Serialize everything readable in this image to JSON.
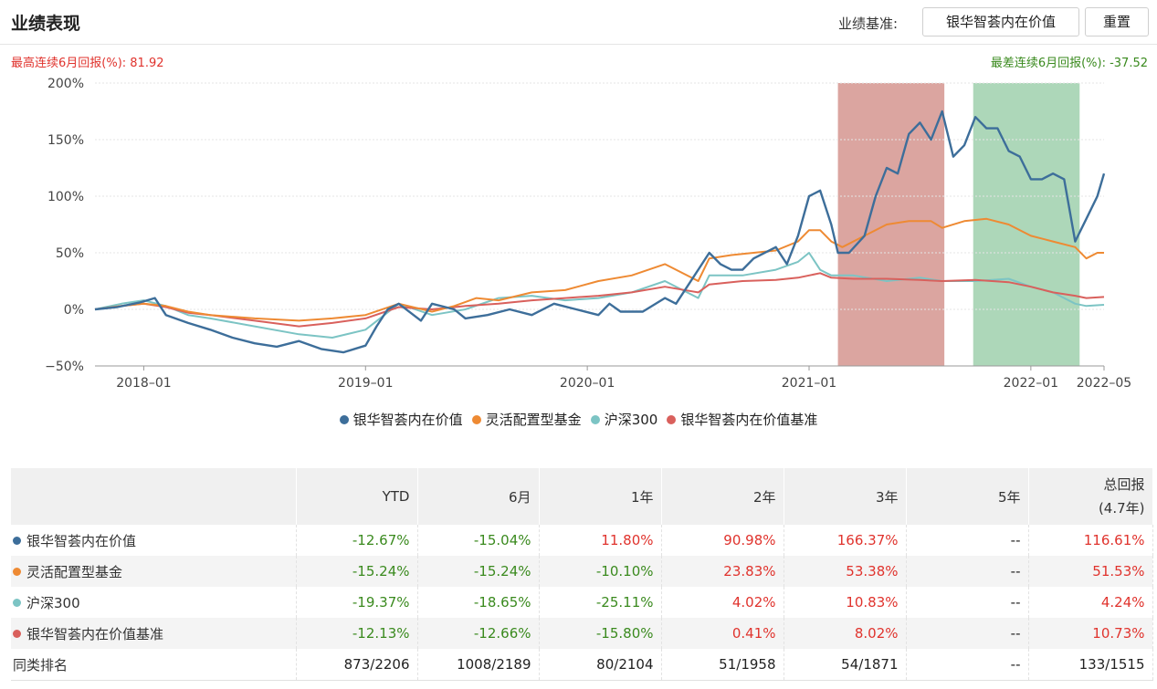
{
  "header": {
    "title": "业绩表现",
    "benchmark_label": "业绩基准:",
    "benchmark_value": "银华智荟内在价值",
    "reset_label": "重置"
  },
  "stats": {
    "max_6m": "最高连续6月回报(%):  81.92",
    "min_6m": "最差连续6月回报(%):  -37.52"
  },
  "colors": {
    "fund": "#3d6e9a",
    "category": "#ee8a33",
    "hs300": "#7cc4c4",
    "benchmark": "#d9605c",
    "best_band": "#d9a09b",
    "worst_band": "#a9d5b5",
    "positive": "#e0332d",
    "negative": "#3a8a1e"
  },
  "chart_data": {
    "type": "line",
    "ylim": [
      -50,
      200
    ],
    "yticks": [
      200,
      150,
      100,
      50,
      0,
      -50
    ],
    "ytick_labels": [
      "200%",
      "150%",
      "100%",
      "50%",
      "0%",
      "−50%"
    ],
    "xlim": [
      2017.78,
      2022.33
    ],
    "xticks": [
      2018.0,
      2019.0,
      2020.0,
      2021.0,
      2022.0,
      2022.33
    ],
    "xtick_labels": [
      "2018–01",
      "2019–01",
      "2020–01",
      "2021–01",
      "2022–01",
      "2022–05"
    ],
    "shaded_regions": [
      {
        "kind": "best",
        "x0": 2021.13,
        "x1": 2021.61
      },
      {
        "kind": "worst",
        "x0": 2021.74,
        "x1": 2022.22
      }
    ],
    "series": [
      {
        "name": "银华智荟内在价值",
        "color_key": "fund",
        "x": [
          2017.78,
          2017.88,
          2017.98,
          2018.05,
          2018.1,
          2018.2,
          2018.3,
          2018.4,
          2018.5,
          2018.6,
          2018.7,
          2018.8,
          2018.9,
          2019.0,
          2019.05,
          2019.1,
          2019.15,
          2019.25,
          2019.3,
          2019.4,
          2019.45,
          2019.55,
          2019.65,
          2019.75,
          2019.85,
          2019.95,
          2020.05,
          2020.1,
          2020.15,
          2020.25,
          2020.35,
          2020.4,
          2020.5,
          2020.55,
          2020.6,
          2020.65,
          2020.7,
          2020.75,
          2020.85,
          2020.9,
          2020.95,
          2021.0,
          2021.05,
          2021.1,
          2021.13,
          2021.18,
          2021.25,
          2021.3,
          2021.35,
          2021.4,
          2021.45,
          2021.5,
          2021.55,
          2021.6,
          2021.65,
          2021.7,
          2021.75,
          2021.8,
          2021.85,
          2021.9,
          2021.95,
          2022.0,
          2022.05,
          2022.1,
          2022.15,
          2022.2,
          2022.25,
          2022.3,
          2022.33
        ],
        "y": [
          0,
          2,
          6,
          10,
          -5,
          -12,
          -18,
          -25,
          -30,
          -33,
          -28,
          -35,
          -38,
          -32,
          -15,
          0,
          5,
          -10,
          5,
          0,
          -8,
          -5,
          0,
          -5,
          5,
          0,
          -5,
          5,
          -2,
          -2,
          10,
          5,
          35,
          50,
          40,
          35,
          35,
          45,
          55,
          40,
          65,
          100,
          105,
          75,
          50,
          50,
          65,
          100,
          125,
          120,
          155,
          165,
          150,
          175,
          135,
          145,
          170,
          160,
          160,
          140,
          135,
          115,
          115,
          120,
          115,
          60,
          80,
          100,
          120
        ]
      },
      {
        "name": "灵活配置型基金",
        "color_key": "category",
        "x": [
          2017.78,
          2017.9,
          2018.0,
          2018.1,
          2018.2,
          2018.3,
          2018.5,
          2018.7,
          2018.85,
          2019.0,
          2019.15,
          2019.3,
          2019.4,
          2019.5,
          2019.6,
          2019.75,
          2019.9,
          2020.05,
          2020.2,
          2020.35,
          2020.5,
          2020.55,
          2020.65,
          2020.75,
          2020.85,
          2020.95,
          2021.0,
          2021.05,
          2021.1,
          2021.15,
          2021.25,
          2021.35,
          2021.45,
          2021.55,
          2021.6,
          2021.7,
          2021.8,
          2021.9,
          2022.0,
          2022.1,
          2022.2,
          2022.25,
          2022.3,
          2022.33
        ],
        "y": [
          0,
          3,
          5,
          3,
          -2,
          -5,
          -8,
          -10,
          -8,
          -5,
          5,
          -2,
          3,
          10,
          8,
          15,
          17,
          25,
          30,
          40,
          25,
          45,
          48,
          50,
          52,
          60,
          70,
          70,
          60,
          55,
          65,
          75,
          78,
          78,
          72,
          78,
          80,
          75,
          65,
          60,
          55,
          45,
          50,
          50
        ]
      },
      {
        "name": "沪深300",
        "color_key": "hs300",
        "x": [
          2017.78,
          2017.9,
          2018.0,
          2018.1,
          2018.2,
          2018.3,
          2018.5,
          2018.7,
          2018.85,
          2019.0,
          2019.15,
          2019.3,
          2019.45,
          2019.6,
          2019.75,
          2019.9,
          2020.05,
          2020.2,
          2020.35,
          2020.5,
          2020.55,
          2020.7,
          2020.85,
          2020.95,
          2021.0,
          2021.05,
          2021.1,
          2021.2,
          2021.35,
          2021.5,
          2021.6,
          2021.75,
          2021.9,
          2022.0,
          2022.1,
          2022.2,
          2022.25,
          2022.33
        ],
        "y": [
          0,
          5,
          8,
          3,
          -5,
          -8,
          -15,
          -22,
          -25,
          -18,
          5,
          -5,
          0,
          10,
          12,
          8,
          10,
          15,
          25,
          10,
          30,
          30,
          35,
          42,
          50,
          35,
          30,
          30,
          25,
          28,
          25,
          25,
          27,
          20,
          15,
          5,
          3,
          4
        ]
      },
      {
        "name": "银华智荟内在价值基准",
        "color_key": "benchmark",
        "x": [
          2017.78,
          2017.9,
          2018.0,
          2018.1,
          2018.2,
          2018.3,
          2018.5,
          2018.7,
          2018.85,
          2019.0,
          2019.15,
          2019.3,
          2019.45,
          2019.6,
          2019.75,
          2019.9,
          2020.05,
          2020.2,
          2020.35,
          2020.5,
          2020.55,
          2020.7,
          2020.85,
          2020.95,
          2021.0,
          2021.05,
          2021.1,
          2021.2,
          2021.35,
          2021.5,
          2021.6,
          2021.75,
          2021.9,
          2022.0,
          2022.1,
          2022.2,
          2022.25,
          2022.33
        ],
        "y": [
          0,
          3,
          5,
          2,
          -3,
          -5,
          -10,
          -15,
          -12,
          -8,
          2,
          0,
          3,
          5,
          8,
          10,
          12,
          15,
          20,
          15,
          22,
          25,
          26,
          28,
          30,
          32,
          28,
          27,
          27,
          26,
          25,
          26,
          24,
          20,
          15,
          12,
          10,
          11
        ]
      }
    ]
  },
  "legend": [
    {
      "label": "银华智荟内在价值",
      "color_key": "fund"
    },
    {
      "label": "灵活配置型基金",
      "color_key": "category"
    },
    {
      "label": "沪深300",
      "color_key": "hs300"
    },
    {
      "label": "银华智荟内在价值基准",
      "color_key": "benchmark"
    }
  ],
  "table": {
    "headers": [
      "",
      "YTD",
      "6月",
      "1年",
      "2年",
      "3年",
      "5年",
      "总回报\n(4.7年)"
    ],
    "rows": [
      {
        "name": "银华智荟内在价值",
        "color_key": "fund",
        "values": [
          "-12.67%",
          "-15.04%",
          "11.80%",
          "90.98%",
          "166.37%",
          "--",
          "116.61%"
        ]
      },
      {
        "name": "灵活配置型基金",
        "color_key": "category",
        "values": [
          "-15.24%",
          "-15.24%",
          "-10.10%",
          "23.83%",
          "53.38%",
          "--",
          "51.53%"
        ]
      },
      {
        "name": "沪深300",
        "color_key": "hs300",
        "values": [
          "-19.37%",
          "-18.65%",
          "-25.11%",
          "4.02%",
          "10.83%",
          "--",
          "4.24%"
        ]
      },
      {
        "name": "银华智荟内在价值基准",
        "color_key": "benchmark",
        "values": [
          "-12.13%",
          "-12.66%",
          "-15.80%",
          "0.41%",
          "8.02%",
          "--",
          "10.73%"
        ]
      }
    ],
    "rank": {
      "name": "同类排名",
      "values": [
        "873/2206",
        "1008/2189",
        "80/2104",
        "51/1958",
        "54/1871",
        "--",
        "133/1515"
      ]
    }
  }
}
